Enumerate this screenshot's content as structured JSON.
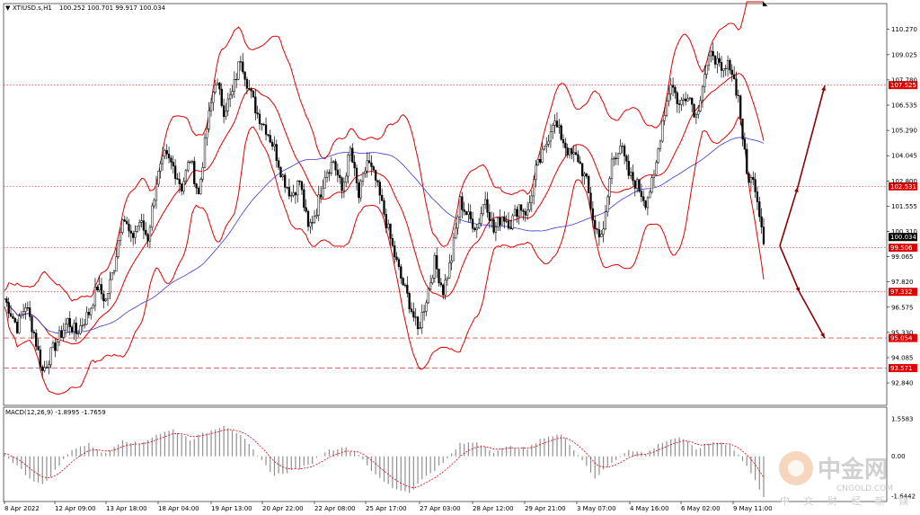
{
  "header": {
    "symbol_text": "XTIUSD.s,H1",
    "ohlc_text": "100.252 100.701 99.917 100.034"
  },
  "macd_label": "MACD(12,26,9) -1.8995 -1.7659",
  "watermark": {
    "big": "中金网",
    "url": "CNGOLD.COM",
    "sub": "中 文 财 经 新 媒 体"
  },
  "colors": {
    "bollinger": "#e00000",
    "ma_blue": "#3a3ad0",
    "candle": "#000000",
    "level_line": "#e05050",
    "level_box": "#e00000",
    "arrow": "#8b0000",
    "price_box": "#000000",
    "macd_hist": "#909090",
    "macd_signal": "#e00000"
  },
  "chart_data": {
    "type": "candlestick",
    "instrument": "XTIUSD.s",
    "timeframe": "H1",
    "current_price": 100.034,
    "yaxis_ticks": [
      110.27,
      109.025,
      107.78,
      106.535,
      105.29,
      104.045,
      102.8,
      101.555,
      100.31,
      99.065,
      97.82,
      96.575,
      95.33,
      94.085,
      92.84
    ],
    "ylim": [
      92.0,
      111.1
    ],
    "xaxis_ticks": [
      "8 Apr 2022",
      "12 Apr 09:00",
      "13 Apr 18:00",
      "18 Apr 04:00",
      "19 Apr 13:00",
      "20 Apr 22:00",
      "22 Apr 08:00",
      "25 Apr 17:00",
      "27 Apr 03:00",
      "28 Apr 12:00",
      "29 Apr 21:00",
      "3 May 07:00",
      "4 May 16:00",
      "6 May 02:00",
      "9 May 11:00"
    ],
    "horizontal_levels": [
      {
        "value": 107.525,
        "label": "107.525",
        "style": "dotted"
      },
      {
        "value": 102.531,
        "label": "102.531",
        "style": "dotted"
      },
      {
        "value": 99.506,
        "label": "99.506",
        "style": "dotted"
      },
      {
        "value": 97.332,
        "label": "97.332",
        "style": "dotted"
      },
      {
        "value": 95.054,
        "label": "95.054",
        "style": "dashed"
      },
      {
        "value": 93.571,
        "label": "93.571",
        "style": "dashed"
      }
    ],
    "macd_ticks": [
      1.5583,
      0.0,
      -1.6442
    ],
    "macd_ylim": [
      -1.8,
      1.7
    ],
    "scenario_arrows": [
      {
        "from_price": 99.6,
        "to_price": 102.5
      },
      {
        "from_price": 102.5,
        "to_price": 107.5
      },
      {
        "from_price": 99.6,
        "to_price": 97.3
      },
      {
        "from_price": 97.3,
        "to_price": 95.05
      }
    ],
    "price_path": [
      [
        0,
        97.0
      ],
      [
        6,
        95.6
      ],
      [
        10,
        96.7
      ],
      [
        14,
        95.3
      ],
      [
        18,
        93.4
      ],
      [
        24,
        94.7
      ],
      [
        30,
        95.9
      ],
      [
        34,
        95.3
      ],
      [
        40,
        96.3
      ],
      [
        44,
        97.6
      ],
      [
        48,
        96.9
      ],
      [
        52,
        98.6
      ],
      [
        56,
        101.2
      ],
      [
        60,
        99.9
      ],
      [
        64,
        100.8
      ],
      [
        68,
        100.0
      ],
      [
        72,
        102.8
      ],
      [
        76,
        104.0
      ],
      [
        80,
        103.5
      ],
      [
        84,
        102.5
      ],
      [
        88,
        103.9
      ],
      [
        92,
        102.1
      ],
      [
        96,
        105.4
      ],
      [
        100,
        107.8
      ],
      [
        104,
        106.3
      ],
      [
        108,
        107.1
      ],
      [
        112,
        108.9
      ],
      [
        116,
        107.3
      ],
      [
        120,
        106.1
      ],
      [
        124,
        105.4
      ],
      [
        128,
        104.4
      ],
      [
        132,
        103.0
      ],
      [
        136,
        102.1
      ],
      [
        140,
        102.8
      ],
      [
        144,
        100.4
      ],
      [
        148,
        101.4
      ],
      [
        152,
        103.2
      ],
      [
        156,
        103.8
      ],
      [
        160,
        102.3
      ],
      [
        164,
        104.3
      ],
      [
        168,
        102.0
      ],
      [
        172,
        103.8
      ],
      [
        176,
        102.8
      ],
      [
        180,
        101.2
      ],
      [
        184,
        99.5
      ],
      [
        188,
        98.0
      ],
      [
        192,
        96.8
      ],
      [
        196,
        95.4
      ],
      [
        200,
        97.0
      ],
      [
        204,
        98.8
      ],
      [
        208,
        97.4
      ],
      [
        212,
        99.0
      ],
      [
        216,
        101.8
      ],
      [
        220,
        101.0
      ],
      [
        224,
        100.5
      ],
      [
        228,
        102.0
      ],
      [
        232,
        100.3
      ],
      [
        236,
        101.1
      ],
      [
        240,
        100.7
      ],
      [
        244,
        101.6
      ],
      [
        248,
        101.2
      ],
      [
        252,
        103.3
      ],
      [
        256,
        104.3
      ],
      [
        260,
        105.8
      ],
      [
        264,
        105.0
      ],
      [
        268,
        104.1
      ],
      [
        272,
        103.9
      ],
      [
        276,
        102.7
      ],
      [
        280,
        100.4
      ],
      [
        284,
        100.2
      ],
      [
        288,
        103.8
      ],
      [
        292,
        104.6
      ],
      [
        296,
        103.1
      ],
      [
        300,
        102.6
      ],
      [
        304,
        101.8
      ],
      [
        308,
        102.9
      ],
      [
        312,
        105.8
      ],
      [
        316,
        107.7
      ],
      [
        320,
        106.5
      ],
      [
        324,
        107.2
      ],
      [
        328,
        106.0
      ],
      [
        332,
        108.1
      ],
      [
        336,
        109.2
      ],
      [
        340,
        108.0
      ],
      [
        344,
        108.6
      ],
      [
        348,
        106.9
      ],
      [
        352,
        103.1
      ],
      [
        356,
        102.6
      ],
      [
        360,
        100.0
      ]
    ],
    "macd_path": [
      [
        0,
        0.1
      ],
      [
        12,
        -0.9
      ],
      [
        18,
        -1.2
      ],
      [
        24,
        -0.6
      ],
      [
        32,
        0.3
      ],
      [
        40,
        0.5
      ],
      [
        48,
        0.1
      ],
      [
        56,
        0.7
      ],
      [
        64,
        0.5
      ],
      [
        72,
        0.9
      ],
      [
        80,
        1.1
      ],
      [
        88,
        0.7
      ],
      [
        96,
        1.0
      ],
      [
        104,
        1.3
      ],
      [
        112,
        0.9
      ],
      [
        120,
        0.0
      ],
      [
        128,
        -0.8
      ],
      [
        136,
        -0.6
      ],
      [
        144,
        -0.4
      ],
      [
        152,
        0.2
      ],
      [
        160,
        0.4
      ],
      [
        168,
        0.1
      ],
      [
        176,
        -0.8
      ],
      [
        184,
        -1.3
      ],
      [
        192,
        -1.5
      ],
      [
        200,
        -0.8
      ],
      [
        208,
        -0.3
      ],
      [
        216,
        0.5
      ],
      [
        224,
        0.6
      ],
      [
        232,
        0.2
      ],
      [
        240,
        0.4
      ],
      [
        248,
        0.3
      ],
      [
        256,
        0.8
      ],
      [
        264,
        0.9
      ],
      [
        272,
        0.1
      ],
      [
        280,
        -0.9
      ],
      [
        288,
        -0.3
      ],
      [
        296,
        0.3
      ],
      [
        304,
        0.1
      ],
      [
        312,
        0.6
      ],
      [
        320,
        0.8
      ],
      [
        328,
        0.3
      ],
      [
        336,
        0.6
      ],
      [
        344,
        0.5
      ],
      [
        352,
        -0.4
      ],
      [
        360,
        -1.65
      ]
    ]
  }
}
